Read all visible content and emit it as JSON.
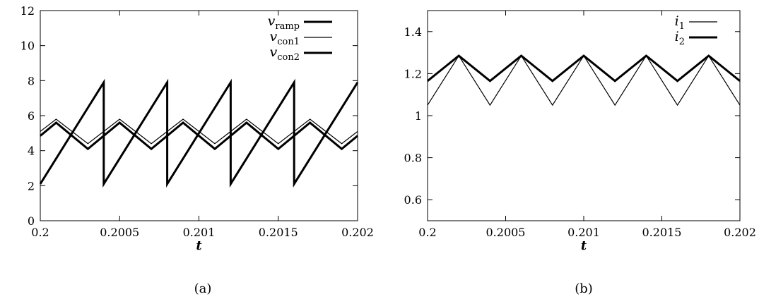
{
  "chart_data": [
    {
      "type": "line",
      "panel_label": "(a)",
      "xlabel": "t",
      "ylabel": "",
      "xlim": [
        0.2,
        0.202
      ],
      "ylim": [
        0,
        12
      ],
      "xticks": [
        0.2,
        0.2005,
        0.201,
        0.2015,
        0.202
      ],
      "xtick_labels": [
        "0.2",
        "0.2005",
        "0.201",
        "0.2015",
        "0.202"
      ],
      "yticks": [
        0,
        2,
        4,
        6,
        8,
        10,
        12
      ],
      "ytick_labels": [
        "0",
        "2",
        "4",
        "6",
        "8",
        "10",
        "12"
      ],
      "grid": false,
      "legend_position": "top-right",
      "series": [
        {
          "name": "v_ramp",
          "legend_base": "v",
          "legend_sub": "ramp",
          "line": "thick",
          "color": "#000000",
          "x": [
            0.2,
            0.2004,
            0.2004,
            0.2008,
            0.2008,
            0.2012,
            0.2012,
            0.2016,
            0.2016,
            0.202
          ],
          "y": [
            2.1,
            7.9,
            2.1,
            7.9,
            2.1,
            7.9,
            2.1,
            7.9,
            2.1,
            7.9
          ]
        },
        {
          "name": "v_con1",
          "legend_base": "v",
          "legend_sub": "con1",
          "line": "thin",
          "color": "#000000",
          "x": [
            0.2,
            0.2001,
            0.2002,
            0.2003,
            0.2004,
            0.2005,
            0.2006,
            0.2007,
            0.2008,
            0.2009,
            0.201,
            0.2011,
            0.2012,
            0.2013,
            0.2014,
            0.2015,
            0.2016,
            0.2017,
            0.2018,
            0.2019,
            0.202
          ],
          "y": [
            5.1,
            5.8,
            5.1,
            4.4,
            5.1,
            5.8,
            5.1,
            4.4,
            5.1,
            5.8,
            5.1,
            4.4,
            5.1,
            5.8,
            5.1,
            4.4,
            5.1,
            5.8,
            5.1,
            4.4,
            5.1
          ]
        },
        {
          "name": "v_con2",
          "legend_base": "v",
          "legend_sub": "con2",
          "line": "thick",
          "color": "#000000",
          "x": [
            0.2,
            0.2001,
            0.2002,
            0.2003,
            0.2004,
            0.2005,
            0.2006,
            0.2007,
            0.2008,
            0.2009,
            0.201,
            0.2011,
            0.2012,
            0.2013,
            0.2014,
            0.2015,
            0.2016,
            0.2017,
            0.2018,
            0.2019,
            0.202
          ],
          "y": [
            4.85,
            5.6,
            4.85,
            4.1,
            4.85,
            5.6,
            4.85,
            4.1,
            4.85,
            5.6,
            4.85,
            4.1,
            4.85,
            5.6,
            4.85,
            4.1,
            4.85,
            5.6,
            4.85,
            4.1,
            4.85
          ]
        }
      ]
    },
    {
      "type": "line",
      "panel_label": "(b)",
      "xlabel": "t",
      "ylabel": "",
      "xlim": [
        0.2,
        0.202
      ],
      "ylim": [
        0.5,
        1.5
      ],
      "xticks": [
        0.2,
        0.2005,
        0.201,
        0.2015,
        0.202
      ],
      "xtick_labels": [
        "0.2",
        "0.2005",
        "0.201",
        "0.2015",
        "0.202"
      ],
      "yticks": [
        0.6,
        0.8,
        1.0,
        1.2,
        1.4
      ],
      "ytick_labels": [
        "0.6",
        "0.8",
        "1",
        "1.2",
        "1.4"
      ],
      "grid": false,
      "legend_position": "top-right",
      "series": [
        {
          "name": "i_1",
          "legend_base": "i",
          "legend_sub": "1",
          "line": "thin",
          "color": "#000000",
          "x": [
            0.2,
            0.2002,
            0.2004,
            0.2006,
            0.2008,
            0.201,
            0.2012,
            0.2014,
            0.2016,
            0.2018,
            0.202
          ],
          "y": [
            1.05,
            1.285,
            1.05,
            1.285,
            1.05,
            1.285,
            1.05,
            1.285,
            1.05,
            1.285,
            1.05
          ]
        },
        {
          "name": "i_2",
          "legend_base": "i",
          "legend_sub": "2",
          "line": "thick",
          "color": "#000000",
          "x": [
            0.2,
            0.2002,
            0.2004,
            0.2006,
            0.2008,
            0.201,
            0.2012,
            0.2014,
            0.2016,
            0.2018,
            0.202
          ],
          "y": [
            1.165,
            1.285,
            1.165,
            1.285,
            1.165,
            1.285,
            1.165,
            1.285,
            1.165,
            1.285,
            1.165
          ]
        }
      ]
    }
  ]
}
